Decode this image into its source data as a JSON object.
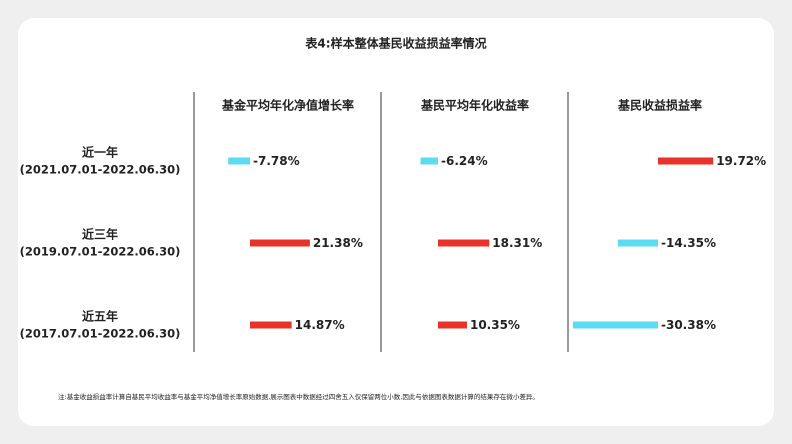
{
  "chart_data": {
    "type": "bar",
    "title": "表4:样本整体基民收益损益率情况",
    "categories": [
      "近一年",
      "近三年",
      "近五年"
    ],
    "category_ranges": [
      "(2021.07.01-2022.06.30)",
      "(2019.07.01-2022.06.30)",
      "(2017.07.01-2022.06.30)"
    ],
    "series": [
      {
        "name": "基金平均年化净值增长率",
        "values": [
          -7.78,
          21.38,
          14.87
        ],
        "value_labels": [
          "-7.78%",
          "21.38%",
          "14.87%"
        ]
      },
      {
        "name": "基民平均年化收益率",
        "values": [
          -6.24,
          18.31,
          10.35
        ],
        "value_labels": [
          "-6.24%",
          "18.31%",
          "10.35%"
        ]
      },
      {
        "name": "基民收益损益率",
        "values": [
          19.72,
          -14.35,
          -30.38
        ],
        "value_labels": [
          "19.72%",
          "-14.35%",
          "-30.38%"
        ]
      }
    ],
    "positive_color": "#e8322a",
    "negative_color": "#5cdcf2",
    "note": "注:基金收益损益率计算自基民平均收益率与基金平均净值增长率原始数据,展示图表中数据经过四舍五入仅保留两位小数,因此与依据图表数据计算的结果存在微小差异。"
  }
}
